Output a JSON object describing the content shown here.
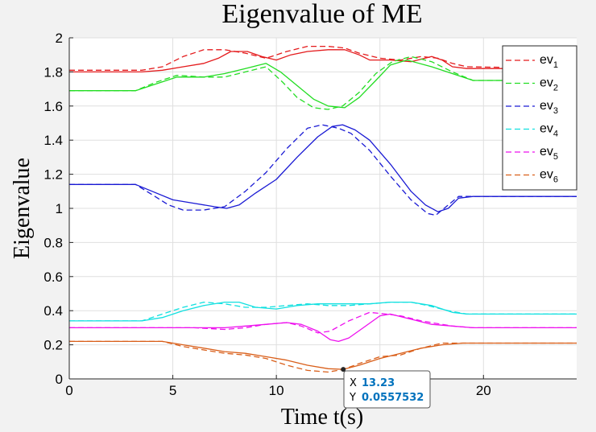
{
  "chart_data": {
    "type": "line",
    "title": "Eigenvalue of ME",
    "xlabel": "Time t(s)",
    "ylabel": "Eigenvalue",
    "xlim": [
      0,
      24.5
    ],
    "ylim": [
      0,
      2
    ],
    "xticks": [
      0,
      5,
      10,
      15,
      20
    ],
    "xtick_labels": [
      "0",
      "5",
      "10",
      "15",
      "20"
    ],
    "yticks": [
      0,
      0.2,
      0.4,
      0.6,
      0.8,
      1,
      1.2,
      1.4,
      1.6,
      1.8,
      2
    ],
    "ytick_labels": [
      "0",
      "0.2",
      "0.4",
      "0.6",
      "0.8",
      "1",
      "1.2",
      "1.4",
      "1.6",
      "1.8",
      "2"
    ],
    "grid": true,
    "legend_location": "top-right",
    "series": [
      {
        "name": "ev",
        "subscript": "1",
        "color": "#e41a1c",
        "solid": [
          [
            0,
            1.8
          ],
          [
            3.5,
            1.8
          ],
          [
            4.5,
            1.81
          ],
          [
            5.5,
            1.83
          ],
          [
            6.5,
            1.85
          ],
          [
            7.2,
            1.88
          ],
          [
            7.8,
            1.92
          ],
          [
            8.6,
            1.92
          ],
          [
            9.3,
            1.89
          ],
          [
            10,
            1.87
          ],
          [
            10.7,
            1.9
          ],
          [
            11.5,
            1.92
          ],
          [
            12.5,
            1.93
          ],
          [
            13.3,
            1.93
          ],
          [
            14,
            1.9
          ],
          [
            14.5,
            1.87
          ],
          [
            15.5,
            1.87
          ],
          [
            16.5,
            1.86
          ],
          [
            17.5,
            1.89
          ],
          [
            18,
            1.87
          ],
          [
            18.5,
            1.83
          ],
          [
            19.2,
            1.82
          ],
          [
            24.5,
            1.82
          ]
        ],
        "dashed": [
          [
            0,
            1.81
          ],
          [
            3.5,
            1.81
          ],
          [
            4.5,
            1.83
          ],
          [
            5.5,
            1.89
          ],
          [
            6.5,
            1.93
          ],
          [
            7.5,
            1.93
          ],
          [
            8.5,
            1.91
          ],
          [
            9.5,
            1.88
          ],
          [
            10.5,
            1.92
          ],
          [
            11.5,
            1.95
          ],
          [
            12.5,
            1.95
          ],
          [
            13.3,
            1.94
          ],
          [
            14,
            1.91
          ],
          [
            15,
            1.88
          ],
          [
            16,
            1.87
          ],
          [
            17,
            1.89
          ],
          [
            17.8,
            1.88
          ],
          [
            18.5,
            1.85
          ],
          [
            19.2,
            1.83
          ],
          [
            24.5,
            1.82
          ]
        ]
      },
      {
        "name": "ev",
        "subscript": "2",
        "color": "#22dd22",
        "solid": [
          [
            0,
            1.69
          ],
          [
            3.2,
            1.69
          ],
          [
            4.2,
            1.73
          ],
          [
            5.2,
            1.77
          ],
          [
            6.5,
            1.77
          ],
          [
            7.5,
            1.79
          ],
          [
            8.5,
            1.82
          ],
          [
            9.5,
            1.85
          ],
          [
            10.2,
            1.8
          ],
          [
            11,
            1.72
          ],
          [
            11.8,
            1.64
          ],
          [
            12.5,
            1.6
          ],
          [
            13.3,
            1.59
          ],
          [
            14,
            1.65
          ],
          [
            14.8,
            1.75
          ],
          [
            15.5,
            1.84
          ],
          [
            16.3,
            1.87
          ],
          [
            17.5,
            1.83
          ],
          [
            18.5,
            1.79
          ],
          [
            19.5,
            1.75
          ],
          [
            24.5,
            1.75
          ]
        ],
        "dashed": [
          [
            0,
            1.69
          ],
          [
            3.2,
            1.69
          ],
          [
            4.2,
            1.74
          ],
          [
            5.2,
            1.78
          ],
          [
            6.5,
            1.77
          ],
          [
            7.5,
            1.77
          ],
          [
            8.5,
            1.8
          ],
          [
            9.5,
            1.83
          ],
          [
            10.3,
            1.74
          ],
          [
            11,
            1.65
          ],
          [
            11.8,
            1.59
          ],
          [
            12.5,
            1.58
          ],
          [
            13.2,
            1.6
          ],
          [
            14,
            1.68
          ],
          [
            14.8,
            1.79
          ],
          [
            15.6,
            1.86
          ],
          [
            16.5,
            1.89
          ],
          [
            17.5,
            1.86
          ],
          [
            18.5,
            1.8
          ],
          [
            19.5,
            1.75
          ],
          [
            24.5,
            1.75
          ]
        ]
      },
      {
        "name": "ev",
        "subscript": "3",
        "color": "#1a1ad4",
        "solid": [
          [
            0,
            1.14
          ],
          [
            3.2,
            1.14
          ],
          [
            4,
            1.1
          ],
          [
            5,
            1.05
          ],
          [
            6,
            1.03
          ],
          [
            7,
            1.01
          ],
          [
            7.6,
            1.0
          ],
          [
            8.2,
            1.02
          ],
          [
            9,
            1.09
          ],
          [
            10,
            1.17
          ],
          [
            11,
            1.3
          ],
          [
            12,
            1.42
          ],
          [
            12.7,
            1.48
          ],
          [
            13.2,
            1.49
          ],
          [
            13.8,
            1.46
          ],
          [
            14.5,
            1.4
          ],
          [
            15.5,
            1.26
          ],
          [
            16.5,
            1.1
          ],
          [
            17.2,
            1.02
          ],
          [
            17.8,
            0.98
          ],
          [
            18.3,
            1.0
          ],
          [
            18.8,
            1.06
          ],
          [
            19.5,
            1.07
          ],
          [
            24.5,
            1.07
          ]
        ],
        "dashed": [
          [
            0,
            1.14
          ],
          [
            3.2,
            1.14
          ],
          [
            4,
            1.08
          ],
          [
            4.8,
            1.02
          ],
          [
            5.5,
            0.99
          ],
          [
            6.5,
            0.99
          ],
          [
            7.5,
            1.01
          ],
          [
            8.5,
            1.1
          ],
          [
            9.5,
            1.21
          ],
          [
            10.5,
            1.35
          ],
          [
            11.5,
            1.47
          ],
          [
            12.2,
            1.49
          ],
          [
            13,
            1.47
          ],
          [
            13.6,
            1.44
          ],
          [
            14.5,
            1.34
          ],
          [
            15.5,
            1.19
          ],
          [
            16.5,
            1.05
          ],
          [
            17.3,
            0.97
          ],
          [
            17.7,
            0.96
          ],
          [
            18.2,
            1.01
          ],
          [
            18.8,
            1.07
          ],
          [
            24.5,
            1.07
          ]
        ]
      },
      {
        "name": "ev",
        "subscript": "4",
        "color": "#11e0e0",
        "solid": [
          [
            0,
            0.34
          ],
          [
            3.5,
            0.34
          ],
          [
            4.5,
            0.36
          ],
          [
            5.5,
            0.4
          ],
          [
            6.5,
            0.43
          ],
          [
            7.5,
            0.45
          ],
          [
            8.2,
            0.45
          ],
          [
            9,
            0.42
          ],
          [
            10,
            0.41
          ],
          [
            11,
            0.43
          ],
          [
            12,
            0.44
          ],
          [
            13.5,
            0.44
          ],
          [
            14.5,
            0.44
          ],
          [
            15.5,
            0.45
          ],
          [
            16.5,
            0.45
          ],
          [
            17.5,
            0.43
          ],
          [
            18.5,
            0.39
          ],
          [
            19.2,
            0.38
          ],
          [
            24.5,
            0.38
          ]
        ],
        "dashed": [
          [
            0,
            0.34
          ],
          [
            3.5,
            0.34
          ],
          [
            4.5,
            0.38
          ],
          [
            5.5,
            0.42
          ],
          [
            6.5,
            0.45
          ],
          [
            7.5,
            0.44
          ],
          [
            8.5,
            0.42
          ],
          [
            9.5,
            0.42
          ],
          [
            10.5,
            0.43
          ],
          [
            11.5,
            0.44
          ],
          [
            12.5,
            0.43
          ],
          [
            13.5,
            0.43
          ],
          [
            14.5,
            0.44
          ],
          [
            15.5,
            0.45
          ],
          [
            16.5,
            0.45
          ],
          [
            17.3,
            0.43
          ],
          [
            18.3,
            0.4
          ],
          [
            19.2,
            0.38
          ],
          [
            24.5,
            0.38
          ]
        ]
      },
      {
        "name": "ev",
        "subscript": "5",
        "color": "#ee11ee",
        "solid": [
          [
            0,
            0.3
          ],
          [
            4.5,
            0.3
          ],
          [
            6,
            0.3
          ],
          [
            7.5,
            0.3
          ],
          [
            8.5,
            0.31
          ],
          [
            9.5,
            0.32
          ],
          [
            10.5,
            0.33
          ],
          [
            11.2,
            0.32
          ],
          [
            12,
            0.28
          ],
          [
            12.6,
            0.23
          ],
          [
            13,
            0.22
          ],
          [
            13.5,
            0.24
          ],
          [
            14.2,
            0.3
          ],
          [
            15,
            0.37
          ],
          [
            15.5,
            0.38
          ],
          [
            16.5,
            0.35
          ],
          [
            17.5,
            0.32
          ],
          [
            18.5,
            0.31
          ],
          [
            19.5,
            0.3
          ],
          [
            24.5,
            0.3
          ]
        ],
        "dashed": [
          [
            0,
            0.3
          ],
          [
            4.5,
            0.3
          ],
          [
            6,
            0.3
          ],
          [
            7.5,
            0.29
          ],
          [
            8.5,
            0.3
          ],
          [
            9.5,
            0.32
          ],
          [
            10.5,
            0.33
          ],
          [
            11.2,
            0.31
          ],
          [
            12,
            0.27
          ],
          [
            12.6,
            0.28
          ],
          [
            13.5,
            0.34
          ],
          [
            14.5,
            0.39
          ],
          [
            15.3,
            0.38
          ],
          [
            16,
            0.37
          ],
          [
            17,
            0.34
          ],
          [
            18.5,
            0.31
          ],
          [
            19.5,
            0.3
          ],
          [
            24.5,
            0.3
          ]
        ]
      },
      {
        "name": "ev",
        "subscript": "6",
        "color": "#d95f1a",
        "solid": [
          [
            0,
            0.22
          ],
          [
            4.5,
            0.22
          ],
          [
            5.5,
            0.2
          ],
          [
            6.5,
            0.18
          ],
          [
            7.5,
            0.16
          ],
          [
            8.5,
            0.15
          ],
          [
            9.5,
            0.13
          ],
          [
            10.5,
            0.11
          ],
          [
            11.5,
            0.08
          ],
          [
            12.5,
            0.06
          ],
          [
            13.23,
            0.056
          ],
          [
            14,
            0.08
          ],
          [
            15,
            0.12
          ],
          [
            16,
            0.15
          ],
          [
            17,
            0.18
          ],
          [
            18,
            0.2
          ],
          [
            19,
            0.21
          ],
          [
            24.5,
            0.21
          ]
        ],
        "dashed": [
          [
            0,
            0.22
          ],
          [
            4.5,
            0.22
          ],
          [
            5.5,
            0.19
          ],
          [
            6.5,
            0.17
          ],
          [
            7.5,
            0.15
          ],
          [
            8.5,
            0.14
          ],
          [
            9.5,
            0.12
          ],
          [
            10.5,
            0.08
          ],
          [
            11.5,
            0.05
          ],
          [
            12.5,
            0.04
          ],
          [
            13.23,
            0.056
          ],
          [
            14,
            0.09
          ],
          [
            15,
            0.13
          ],
          [
            16,
            0.14
          ],
          [
            17,
            0.18
          ],
          [
            18,
            0.21
          ],
          [
            19,
            0.21
          ],
          [
            24.5,
            0.21
          ]
        ]
      }
    ],
    "datatip": {
      "x_label": "X",
      "y_label": "Y",
      "x_value": "13.23",
      "y_value": "0.0557532",
      "x": 13.23,
      "y": 0.0557532
    }
  }
}
